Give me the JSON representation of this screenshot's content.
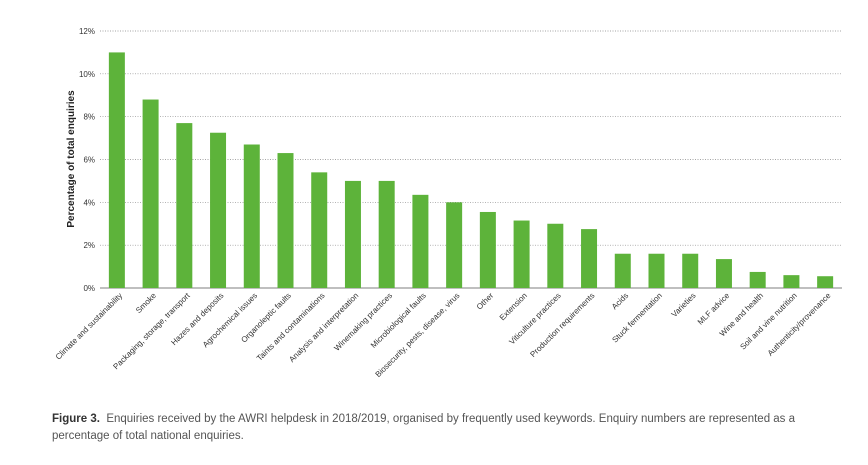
{
  "chart_data": {
    "type": "bar",
    "ylabel": "Percentage of total enquiries",
    "xlabel": "",
    "ylim": [
      0,
      12
    ],
    "yticks": [
      0,
      2,
      4,
      6,
      8,
      10,
      12
    ],
    "ytick_labels": [
      "0%",
      "2%",
      "4%",
      "6%",
      "8%",
      "10%",
      "12%"
    ],
    "grid": "horizontal dotted",
    "bar_color": "#5db33a",
    "categories": [
      "Climate and sustainability",
      "Smoke",
      "Packaging, storage, transport",
      "Hazes and deposits",
      "Agrochemical issues",
      "Organoleptic faults",
      "Taints and contaminations",
      "Analysis and interpretation",
      "Winemaking practices",
      "Microbiological faults",
      "Biosecurity, pests, disease, virus",
      "Other",
      "Extension",
      "Viticulture practices",
      "Production requirements",
      "Acids",
      "Stuck fermentation",
      "Varieties",
      "MLF advice",
      "Wine and health",
      "Soil and vine nutrition",
      "Authenticity/provenance"
    ],
    "values": [
      11.0,
      8.8,
      7.7,
      7.25,
      6.7,
      6.3,
      5.4,
      5.0,
      5.0,
      4.35,
      4.0,
      3.55,
      3.15,
      3.0,
      2.75,
      1.6,
      1.6,
      1.6,
      1.35,
      0.75,
      0.6,
      0.55
    ]
  },
  "caption": {
    "label": "Figure 3.",
    "text": "Enquiries received by the AWRI helpdesk in 2018/2019, organised by frequently used keywords. Enquiry numbers are represented as a percentage of total national enquiries."
  }
}
